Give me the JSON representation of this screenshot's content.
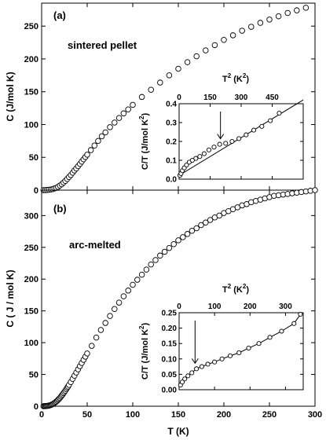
{
  "chart_data": [
    {
      "id": "a",
      "type": "scatter",
      "panel_label": "(a)",
      "annotation": "sintered pellet",
      "ylabel": "C (J/mol K)",
      "xlabel": "",
      "xlim": [
        0,
        300
      ],
      "ylim": [
        0,
        285
      ],
      "xticks": [
        0,
        50,
        100,
        150,
        200,
        250,
        300
      ],
      "yticks": [
        0,
        50,
        100,
        150,
        200,
        250
      ],
      "marker": "open-circle",
      "x": [
        2,
        4,
        6,
        8,
        10,
        12,
        14,
        16,
        18,
        20,
        22,
        24,
        26,
        28,
        30,
        32,
        34,
        36,
        38,
        40,
        42,
        44,
        46,
        48,
        50,
        54,
        58,
        62,
        66,
        70,
        75,
        80,
        85,
        90,
        95,
        100,
        110,
        120,
        130,
        140,
        150,
        160,
        170,
        180,
        190,
        200,
        210,
        220,
        230,
        240,
        250,
        260,
        270,
        280,
        290
      ],
      "y": [
        0,
        0.1,
        0.3,
        0.6,
        1,
        1.5,
        2.5,
        3.5,
        5,
        7,
        9,
        11.5,
        14,
        17,
        20,
        23,
        26.5,
        30,
        33,
        36.5,
        40,
        43.5,
        47,
        50.5,
        54,
        61,
        68,
        75,
        82,
        88,
        96,
        103,
        110,
        117,
        123,
        130,
        142,
        153,
        164,
        175,
        185,
        195,
        204,
        213,
        221,
        229,
        236,
        243,
        249,
        255,
        260,
        265,
        270,
        274,
        278
      ],
      "inset": {
        "type": "line",
        "xlabel": "T² (K²)",
        "xlabel_main": "T",
        "xlabel_sup": "2",
        "xlabel_unit": " (K",
        "xlabel_unit_sup": "2",
        "xlabel_close": ")",
        "ylabel": "C/T (J/mol K²)",
        "ylabel_main": "C/T (J/mol K",
        "ylabel_sup": "2",
        "ylabel_close": ")",
        "xlim": [
          0,
          600
        ],
        "ylim": [
          0,
          0.4
        ],
        "xticks": [
          0,
          150,
          300,
          450
        ],
        "yticks": [
          0.0,
          0.1,
          0.2,
          0.3,
          0.4
        ],
        "x": [
          4,
          9,
          16,
          25,
          36,
          49,
          64,
          81,
          100,
          121,
          144,
          169,
          196,
          225,
          256,
          289,
          324,
          361,
          400,
          441,
          484
        ],
        "y": [
          0.02,
          0.03,
          0.045,
          0.06,
          0.075,
          0.09,
          0.1,
          0.11,
          0.12,
          0.135,
          0.155,
          0.17,
          0.185,
          0.19,
          0.2,
          0.215,
          0.235,
          0.26,
          0.28,
          0.31,
          0.35
        ],
        "fit_line": {
          "x": [
            0,
            600
          ],
          "y": [
            0.02,
            0.42
          ]
        },
        "arrow_x": 200
      }
    },
    {
      "id": "b",
      "type": "scatter",
      "panel_label": "(b)",
      "annotation": "arc-melted",
      "ylabel": "C ( J / mol K)",
      "xlabel": "T (K)",
      "xlim": [
        0,
        300
      ],
      "ylim": [
        0,
        340
      ],
      "xticks": [
        0,
        50,
        100,
        150,
        200,
        250,
        300
      ],
      "yticks": [
        0,
        50,
        100,
        150,
        200,
        250,
        300
      ],
      "marker": "open-circle",
      "x": [
        2,
        3,
        4,
        5,
        6,
        7,
        8,
        9,
        10,
        11,
        12,
        13,
        14,
        15,
        16,
        17,
        18,
        19,
        20,
        21,
        22,
        23,
        24,
        25,
        26,
        27,
        28,
        29,
        30,
        32,
        34,
        36,
        38,
        40,
        42,
        44,
        46,
        48,
        50,
        55,
        60,
        65,
        70,
        75,
        80,
        85,
        90,
        95,
        100,
        105,
        110,
        115,
        120,
        125,
        130,
        135,
        140,
        145,
        150,
        155,
        160,
        165,
        170,
        175,
        180,
        185,
        190,
        195,
        200,
        205,
        210,
        215,
        220,
        225,
        230,
        235,
        240,
        245,
        250,
        255,
        260,
        265,
        270,
        275,
        280,
        285,
        290,
        295,
        300
      ],
      "y": [
        0.05,
        0.1,
        0.15,
        0.3,
        0.45,
        0.7,
        1,
        1.4,
        1.9,
        2.5,
        3.2,
        4,
        5,
        6,
        7.2,
        8.5,
        10,
        11.5,
        13,
        14.8,
        16.6,
        18.5,
        20.5,
        22.5,
        24.5,
        26.7,
        29,
        31,
        33.5,
        38,
        43,
        48,
        53,
        58,
        63,
        68,
        73,
        78,
        83,
        95,
        108,
        120,
        131,
        142,
        153,
        163,
        173,
        182,
        191,
        199,
        207,
        215,
        223,
        230,
        237,
        243,
        249,
        255,
        261,
        266,
        271,
        276,
        280,
        285,
        289,
        293,
        297,
        300,
        304,
        307,
        310,
        313,
        316,
        318,
        321,
        323,
        325,
        327,
        329,
        331,
        332,
        333,
        334,
        335,
        336,
        337,
        338,
        339,
        340
      ],
      "inset": {
        "type": "line",
        "xlabel": "T² (K²)",
        "xlabel_main": "T",
        "xlabel_sup": "2",
        "xlabel_unit": " (K",
        "xlabel_unit_sup": "2",
        "xlabel_close": ")",
        "ylabel": "C/T (J/mol K²)",
        "ylabel_main": "C/T (J/mol K",
        "ylabel_sup": "2",
        "ylabel_close": ")",
        "xlim": [
          0,
          350
        ],
        "ylim": [
          0,
          0.25
        ],
        "xticks": [
          0,
          100,
          200,
          300
        ],
        "yticks": [
          0.0,
          0.05,
          0.1,
          0.15,
          0.2,
          0.25
        ],
        "x": [
          4,
          9,
          16,
          25,
          36,
          49,
          64,
          81,
          100,
          121,
          144,
          169,
          196,
          225,
          256,
          289,
          324,
          342
        ],
        "y": [
          0.015,
          0.025,
          0.035,
          0.045,
          0.055,
          0.068,
          0.075,
          0.083,
          0.09,
          0.1,
          0.11,
          0.12,
          0.135,
          0.15,
          0.17,
          0.19,
          0.215,
          0.245
        ],
        "arrow_x": 45
      }
    }
  ]
}
